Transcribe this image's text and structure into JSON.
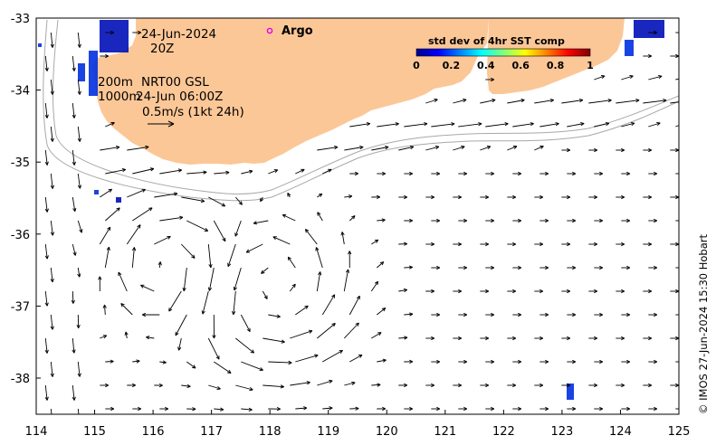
{
  "map": {
    "date": "24-Jun-2024",
    "time": "20Z",
    "contour_label_200": "200m",
    "contour_label_1000": "1000m",
    "product": "NRT00 GSL",
    "product_time": "24-Jun 06:00Z",
    "scale_label": "0.5m/s (1kt 24h)",
    "argo_label": "Argo",
    "colorbar_title": "std dev of 4hr SST comp",
    "colorbar_ticks": [
      "0",
      "0.2",
      "0.4",
      "0.6",
      "0.8",
      "1"
    ],
    "credit": "© IMOS 27-Jun-2024 15:30 Hobart",
    "lon_ticks": [
      "114",
      "115",
      "116",
      "117",
      "118",
      "119",
      "120",
      "121",
      "122",
      "123",
      "124",
      "125"
    ],
    "lat_ticks": [
      "-33",
      "-34",
      "-35",
      "-36",
      "-37",
      "-38"
    ],
    "colors": {
      "land": "#fcc797",
      "argo": "#e800e8",
      "contour": "#a8a8a8",
      "arrow": "#000000"
    }
  }
}
